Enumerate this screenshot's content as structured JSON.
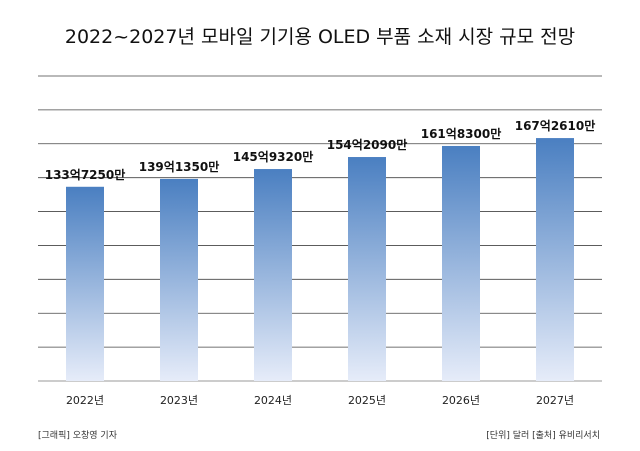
{
  "chart_data": {
    "type": "bar",
    "title": "2022~2027년 모바일 기기용 OLED 부품 소재 시장 규모 전망",
    "categories": [
      "2022년",
      "2023년",
      "2024년",
      "2025년",
      "2026년",
      "2027년"
    ],
    "values": [
      1337250,
      1391350,
      1459320,
      1542090,
      1618300,
      1672610
    ],
    "value_labels": [
      "133억7250만",
      "139억1350만",
      "145억9320만",
      "154억2090만",
      "161억8300만",
      "167억2610만"
    ],
    "unit": "달러",
    "ylim": [
      0,
      2100000
    ],
    "grid": true,
    "colors": {
      "bar_top": "#4a7fc1",
      "bar_bottom": "#e6ecf9",
      "grid": "#444444"
    }
  },
  "footer": {
    "credit": "[그래픽] 오창영 기자",
    "source": "[단위] 달러   [출처] 유비리서치"
  }
}
